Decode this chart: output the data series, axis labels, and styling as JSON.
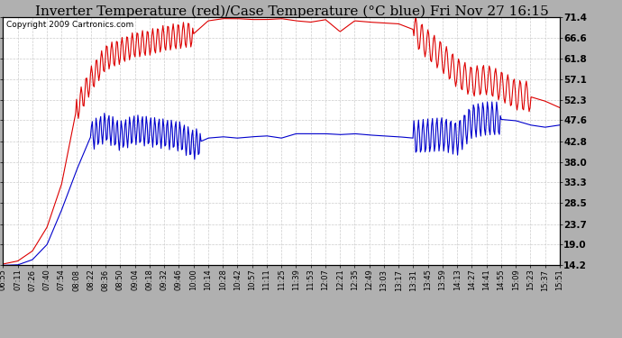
{
  "title": "Inverter Temperature (red)/Case Temperature (°C blue) Fri Nov 27 16:15",
  "copyright": "Copyright 2009 Cartronics.com",
  "y_ticks": [
    14.2,
    19.0,
    23.7,
    28.5,
    33.3,
    38.0,
    42.8,
    47.6,
    52.3,
    57.1,
    61.8,
    66.6,
    71.4
  ],
  "x_labels": [
    "06:55",
    "07:11",
    "07:26",
    "07:40",
    "07:54",
    "08:08",
    "08:22",
    "08:36",
    "08:50",
    "09:04",
    "09:18",
    "09:32",
    "09:46",
    "10:00",
    "10:14",
    "10:28",
    "10:42",
    "10:57",
    "11:11",
    "11:25",
    "11:39",
    "11:53",
    "12:07",
    "12:21",
    "12:35",
    "12:49",
    "13:03",
    "13:17",
    "13:31",
    "13:45",
    "13:59",
    "14:13",
    "14:27",
    "14:41",
    "14:55",
    "15:09",
    "15:23",
    "15:37",
    "15:51"
  ],
  "ylim": [
    14.2,
    71.4
  ],
  "bg_color": "#b0b0b0",
  "plot_bg": "#ffffff",
  "red_color": "#dd0000",
  "blue_color": "#0000cc",
  "grid_color": "#cccccc",
  "title_fontsize": 11,
  "copyright_fontsize": 6.5
}
